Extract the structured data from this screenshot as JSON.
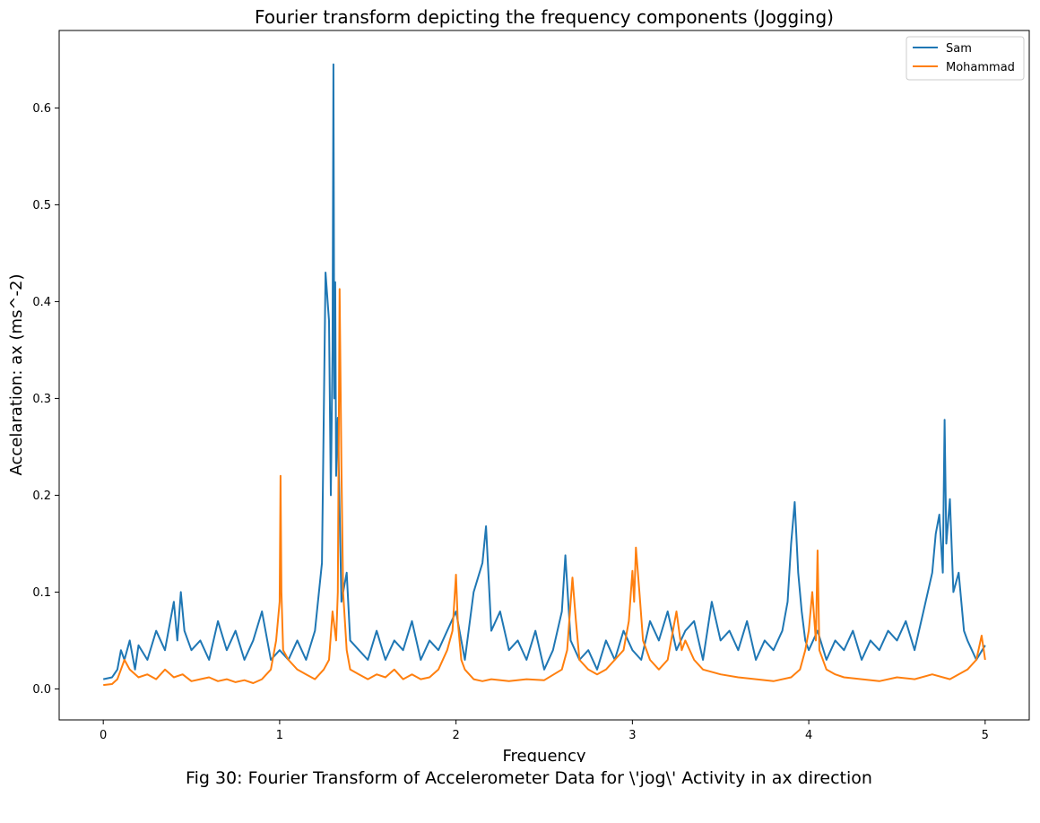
{
  "chart_data": {
    "type": "line",
    "title": "Fourier transform depicting the frequency components (Jogging)",
    "xlabel": "Frequency",
    "ylabel": "Accelaration: ax (ms^-2)",
    "xlim": [
      -0.25,
      5.25
    ],
    "ylim": [
      -0.032,
      0.68
    ],
    "xticks": [
      0,
      1,
      2,
      3,
      4,
      5
    ],
    "yticks": [
      0.0,
      0.1,
      0.2,
      0.3,
      0.4,
      0.5,
      0.6
    ],
    "ytick_labels": [
      "0.0",
      "0.1",
      "0.2",
      "0.3",
      "0.4",
      "0.5",
      "0.6"
    ],
    "grid": false,
    "legend_position": "top-right",
    "series": [
      {
        "name": "Sam",
        "color": "#1f77b4",
        "x": [
          0.0,
          0.05,
          0.08,
          0.1,
          0.12,
          0.15,
          0.18,
          0.2,
          0.25,
          0.3,
          0.35,
          0.38,
          0.4,
          0.42,
          0.44,
          0.46,
          0.5,
          0.55,
          0.6,
          0.65,
          0.7,
          0.75,
          0.8,
          0.85,
          0.9,
          0.95,
          1.0,
          1.05,
          1.1,
          1.15,
          1.2,
          1.24,
          1.26,
          1.28,
          1.29,
          1.3,
          1.305,
          1.31,
          1.315,
          1.32,
          1.33,
          1.35,
          1.38,
          1.4,
          1.45,
          1.5,
          1.55,
          1.6,
          1.65,
          1.7,
          1.75,
          1.8,
          1.85,
          1.9,
          1.95,
          2.0,
          2.05,
          2.1,
          2.15,
          2.17,
          2.2,
          2.25,
          2.3,
          2.35,
          2.4,
          2.45,
          2.5,
          2.55,
          2.6,
          2.62,
          2.65,
          2.7,
          2.75,
          2.8,
          2.85,
          2.9,
          2.95,
          3.0,
          3.05,
          3.1,
          3.15,
          3.2,
          3.25,
          3.3,
          3.35,
          3.4,
          3.45,
          3.5,
          3.55,
          3.6,
          3.65,
          3.7,
          3.75,
          3.8,
          3.85,
          3.88,
          3.9,
          3.92,
          3.94,
          3.96,
          3.98,
          4.0,
          4.05,
          4.1,
          4.15,
          4.2,
          4.25,
          4.3,
          4.35,
          4.4,
          4.45,
          4.5,
          4.55,
          4.6,
          4.65,
          4.7,
          4.72,
          4.74,
          4.76,
          4.77,
          4.78,
          4.8,
          4.82,
          4.85,
          4.88,
          4.9,
          4.95,
          5.0
        ],
        "y": [
          0.01,
          0.012,
          0.02,
          0.04,
          0.03,
          0.05,
          0.02,
          0.045,
          0.03,
          0.06,
          0.04,
          0.07,
          0.09,
          0.05,
          0.1,
          0.06,
          0.04,
          0.05,
          0.03,
          0.07,
          0.04,
          0.06,
          0.03,
          0.05,
          0.08,
          0.03,
          0.04,
          0.03,
          0.05,
          0.03,
          0.06,
          0.13,
          0.43,
          0.38,
          0.2,
          0.35,
          0.645,
          0.3,
          0.42,
          0.22,
          0.28,
          0.09,
          0.12,
          0.05,
          0.04,
          0.03,
          0.06,
          0.03,
          0.05,
          0.04,
          0.07,
          0.03,
          0.05,
          0.04,
          0.06,
          0.08,
          0.03,
          0.1,
          0.13,
          0.168,
          0.06,
          0.08,
          0.04,
          0.05,
          0.03,
          0.06,
          0.02,
          0.04,
          0.08,
          0.138,
          0.05,
          0.03,
          0.04,
          0.02,
          0.05,
          0.03,
          0.06,
          0.04,
          0.03,
          0.07,
          0.05,
          0.08,
          0.04,
          0.06,
          0.07,
          0.03,
          0.09,
          0.05,
          0.06,
          0.04,
          0.07,
          0.03,
          0.05,
          0.04,
          0.06,
          0.09,
          0.15,
          0.193,
          0.12,
          0.08,
          0.05,
          0.04,
          0.06,
          0.03,
          0.05,
          0.04,
          0.06,
          0.03,
          0.05,
          0.04,
          0.06,
          0.05,
          0.07,
          0.04,
          0.08,
          0.12,
          0.16,
          0.18,
          0.12,
          0.278,
          0.15,
          0.196,
          0.1,
          0.12,
          0.06,
          0.05,
          0.03,
          0.045
        ]
      },
      {
        "name": "Mohammad",
        "color": "#ff7f0e",
        "x": [
          0.0,
          0.05,
          0.08,
          0.1,
          0.12,
          0.15,
          0.2,
          0.25,
          0.3,
          0.35,
          0.4,
          0.45,
          0.5,
          0.55,
          0.6,
          0.65,
          0.7,
          0.75,
          0.8,
          0.85,
          0.9,
          0.95,
          0.98,
          1.0,
          1.005,
          1.01,
          1.02,
          1.05,
          1.1,
          1.15,
          1.2,
          1.25,
          1.28,
          1.3,
          1.32,
          1.33,
          1.34,
          1.35,
          1.36,
          1.38,
          1.4,
          1.45,
          1.5,
          1.55,
          1.6,
          1.65,
          1.7,
          1.75,
          1.8,
          1.85,
          1.9,
          1.95,
          1.98,
          2.0,
          2.01,
          2.03,
          2.05,
          2.1,
          2.15,
          2.2,
          2.3,
          2.4,
          2.5,
          2.6,
          2.63,
          2.66,
          2.68,
          2.7,
          2.75,
          2.8,
          2.85,
          2.9,
          2.95,
          2.98,
          3.0,
          3.01,
          3.02,
          3.04,
          3.06,
          3.1,
          3.15,
          3.2,
          3.25,
          3.28,
          3.3,
          3.35,
          3.4,
          3.5,
          3.6,
          3.7,
          3.8,
          3.9,
          3.95,
          3.98,
          4.0,
          4.02,
          4.04,
          4.05,
          4.06,
          4.1,
          4.15,
          4.2,
          4.3,
          4.4,
          4.5,
          4.6,
          4.7,
          4.8,
          4.9,
          4.95,
          4.98,
          5.0
        ],
        "y": [
          0.004,
          0.005,
          0.01,
          0.02,
          0.03,
          0.02,
          0.012,
          0.015,
          0.01,
          0.02,
          0.012,
          0.015,
          0.008,
          0.01,
          0.012,
          0.008,
          0.01,
          0.007,
          0.009,
          0.006,
          0.01,
          0.02,
          0.05,
          0.09,
          0.22,
          0.1,
          0.04,
          0.03,
          0.02,
          0.015,
          0.01,
          0.02,
          0.03,
          0.08,
          0.05,
          0.1,
          0.413,
          0.23,
          0.1,
          0.04,
          0.02,
          0.015,
          0.01,
          0.015,
          0.012,
          0.02,
          0.01,
          0.015,
          0.01,
          0.012,
          0.02,
          0.04,
          0.06,
          0.118,
          0.07,
          0.03,
          0.02,
          0.01,
          0.008,
          0.01,
          0.008,
          0.01,
          0.009,
          0.02,
          0.04,
          0.115,
          0.07,
          0.03,
          0.02,
          0.015,
          0.02,
          0.03,
          0.04,
          0.07,
          0.122,
          0.09,
          0.146,
          0.1,
          0.05,
          0.03,
          0.02,
          0.03,
          0.08,
          0.04,
          0.05,
          0.03,
          0.02,
          0.015,
          0.012,
          0.01,
          0.008,
          0.012,
          0.02,
          0.04,
          0.06,
          0.1,
          0.05,
          0.143,
          0.04,
          0.02,
          0.015,
          0.012,
          0.01,
          0.008,
          0.012,
          0.01,
          0.015,
          0.01,
          0.02,
          0.03,
          0.055,
          0.03
        ]
      }
    ]
  },
  "caption": "Fig 30: Fourier Transform of Accelerometer Data for \\'jog\\' Activity in ax direction"
}
